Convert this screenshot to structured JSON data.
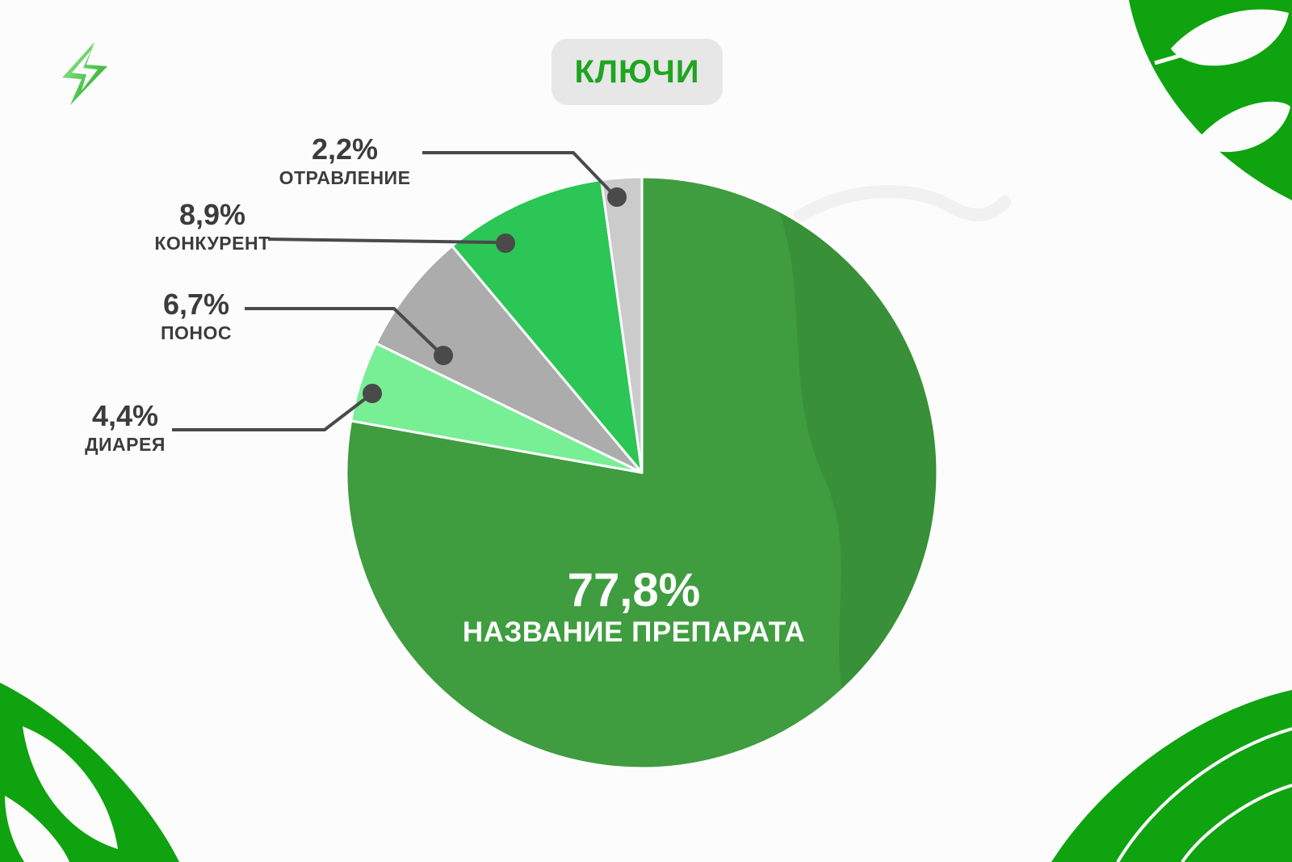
{
  "title": {
    "text": "КЛЮЧИ"
  },
  "chart_data": {
    "type": "pie",
    "title": "КЛЮЧИ",
    "start_angle": "top",
    "direction": "clockwise",
    "legend_position": "callouts-left",
    "segments": [
      {
        "label": "НАЗВАНИЕ ПРЕПАРАТА",
        "value": 77.8,
        "display": "77,8%",
        "color": "#3F9D3F"
      },
      {
        "label": "ДИАРЕЯ",
        "value": 4.4,
        "display": "4,4%",
        "color": "#78EE95"
      },
      {
        "label": "ПОНОС",
        "value": 6.7,
        "display": "6,7%",
        "color": "#ACACAC"
      },
      {
        "label": "КОНКУРЕНТ",
        "value": 8.9,
        "display": "8,9%",
        "color": "#2BC655"
      },
      {
        "label": "ОТРАВЛЕНИЕ",
        "value": 2.2,
        "display": "2,2%",
        "color": "#CBCBCB"
      }
    ]
  },
  "labels": {
    "main": {
      "percent": "77,8%",
      "name": "НАЗВАНИЕ ПРЕПАРАТА"
    },
    "otravlenie": {
      "percent": "2,2%",
      "name": "ОТРАВЛЕНИЕ"
    },
    "konkurent": {
      "percent": "8,9%",
      "name": "КОНКУРЕНТ"
    },
    "ponos": {
      "percent": "6,7%",
      "name": "ПОНОС"
    },
    "diareya": {
      "percent": "4,4%",
      "name": "ДИАРЕЯ"
    }
  },
  "colors": {
    "background": "#FCFCFC",
    "main_green": "#3F9D3F",
    "wave_green": "#389038",
    "bright_green": "#2BC655",
    "light_green": "#78EE95",
    "gray_medium": "#ACACAC",
    "gray_light": "#CBCBCB",
    "decoration_green": "#0FA30F",
    "callout": "#4A4A4A",
    "title_green": "#1FA51F",
    "badge_bg": "#E7E7E7",
    "swirl": "#F1F1F1"
  }
}
